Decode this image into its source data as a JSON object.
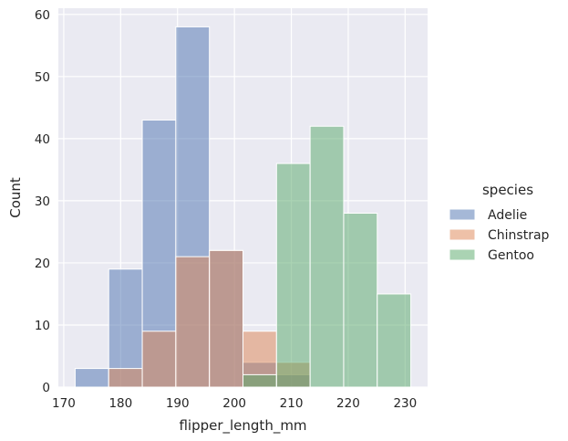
{
  "chart_data": {
    "type": "bar",
    "xlabel": "flipper_length_mm",
    "ylabel": "Count",
    "xlim": [
      169.05,
      233.95
    ],
    "ylim": [
      0,
      61
    ],
    "x_ticks": [
      170,
      180,
      190,
      200,
      210,
      220,
      230
    ],
    "y_ticks": [
      0,
      10,
      20,
      30,
      40,
      50,
      60
    ],
    "grid": true,
    "legend_title": "species",
    "legend_position": "right",
    "bin_edges": [
      172,
      177.9,
      183.8,
      189.7,
      195.6,
      201.5,
      207.4,
      213.3,
      219.2,
      225.1,
      231
    ],
    "series": [
      {
        "name": "Adelie",
        "color": "#4c72b0",
        "values": [
          3,
          19,
          43,
          58,
          22,
          4,
          2,
          0,
          0,
          0
        ]
      },
      {
        "name": "Chinstrap",
        "color": "#dd8452",
        "values": [
          0,
          3,
          9,
          21,
          22,
          9,
          4,
          0,
          0,
          0
        ]
      },
      {
        "name": "Gentoo",
        "color": "#55a868",
        "values": [
          0,
          0,
          0,
          0,
          0,
          2,
          36,
          42,
          28,
          15
        ]
      }
    ]
  }
}
